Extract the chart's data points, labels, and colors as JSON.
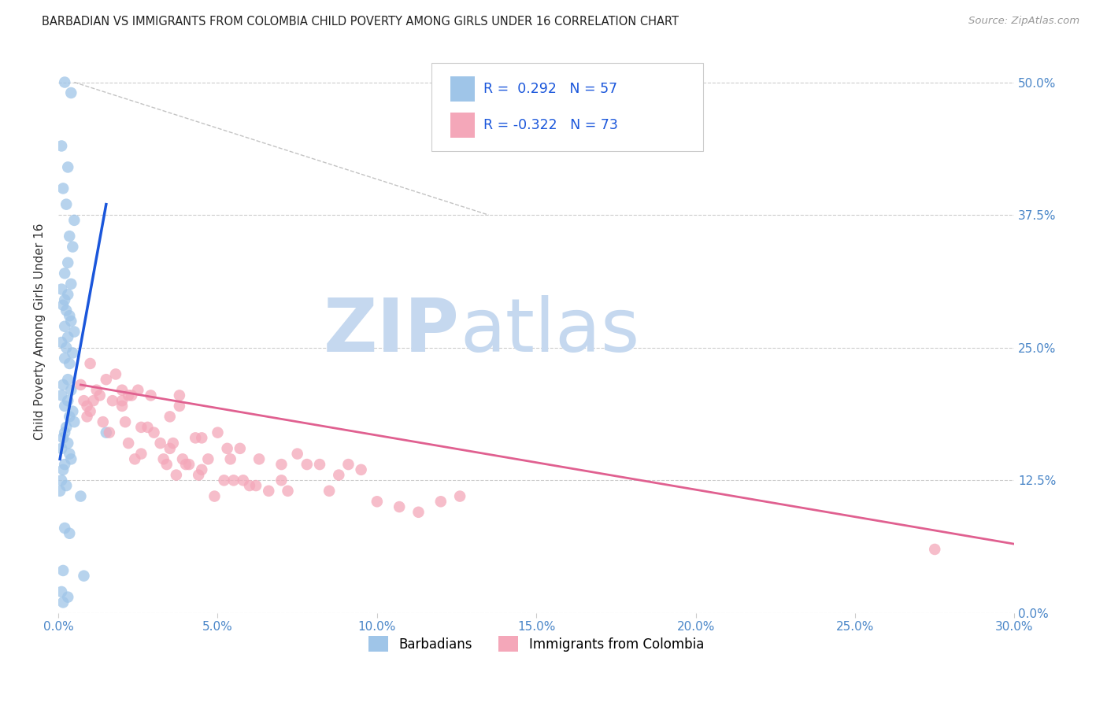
{
  "title": "BARBADIAN VS IMMIGRANTS FROM COLOMBIA CHILD POVERTY AMONG GIRLS UNDER 16 CORRELATION CHART",
  "source": "Source: ZipAtlas.com",
  "xlabel_ticks": [
    "0.0%",
    "5.0%",
    "10.0%",
    "15.0%",
    "20.0%",
    "25.0%",
    "30.0%"
  ],
  "xlabel_vals": [
    0.0,
    5.0,
    10.0,
    15.0,
    20.0,
    25.0,
    30.0
  ],
  "ylabel_ticks": [
    "0.0%",
    "12.5%",
    "25.0%",
    "37.5%",
    "50.0%"
  ],
  "ylabel_vals": [
    0.0,
    12.5,
    25.0,
    37.5,
    50.0
  ],
  "xlim": [
    0,
    30
  ],
  "ylim": [
    0,
    53
  ],
  "ylabel": "Child Poverty Among Girls Under 16",
  "legend_blue_label": "Barbadians",
  "legend_pink_label": "Immigrants from Colombia",
  "R_blue": 0.292,
  "N_blue": 57,
  "R_pink": -0.322,
  "N_pink": 73,
  "blue_color": "#9fc5e8",
  "pink_color": "#f4a7b9",
  "blue_line_color": "#1a56db",
  "pink_line_color": "#e06090",
  "background_color": "#ffffff",
  "blue_scatter_x": [
    0.2,
    0.4,
    0.1,
    0.3,
    0.15,
    0.25,
    0.5,
    0.35,
    0.45,
    0.3,
    0.2,
    0.4,
    0.1,
    0.3,
    0.2,
    0.15,
    0.25,
    0.35,
    0.4,
    0.2,
    0.5,
    0.3,
    0.1,
    0.25,
    0.45,
    0.2,
    0.35,
    0.3,
    0.15,
    0.4,
    0.1,
    0.3,
    0.2,
    0.45,
    0.35,
    0.5,
    0.25,
    0.2,
    1.5,
    0.15,
    0.3,
    0.1,
    0.35,
    0.4,
    0.2,
    0.15,
    0.1,
    0.25,
    0.7,
    0.05,
    0.2,
    0.35,
    0.15,
    0.8,
    0.1,
    0.3,
    0.15
  ],
  "blue_scatter_y": [
    50.0,
    49.0,
    44.0,
    42.0,
    40.0,
    38.5,
    37.0,
    35.5,
    34.5,
    33.0,
    32.0,
    31.0,
    30.5,
    30.0,
    29.5,
    29.0,
    28.5,
    28.0,
    27.5,
    27.0,
    26.5,
    26.0,
    25.5,
    25.0,
    24.5,
    24.0,
    23.5,
    22.0,
    21.5,
    21.0,
    20.5,
    20.0,
    19.5,
    19.0,
    18.5,
    18.0,
    17.5,
    17.0,
    17.0,
    16.5,
    16.0,
    15.5,
    15.0,
    14.5,
    14.0,
    13.5,
    12.5,
    12.0,
    11.0,
    11.5,
    8.0,
    7.5,
    4.0,
    3.5,
    2.0,
    1.5,
    1.0
  ],
  "pink_scatter_x": [
    0.8,
    1.2,
    1.5,
    1.0,
    2.0,
    1.3,
    0.9,
    1.8,
    2.2,
    0.7,
    1.1,
    1.0,
    2.0,
    1.7,
    0.9,
    1.4,
    2.3,
    2.5,
    3.5,
    3.8,
    2.8,
    4.5,
    5.0,
    3.2,
    5.7,
    4.7,
    4.1,
    6.3,
    5.3,
    7.0,
    2.6,
    2.2,
    7.5,
    8.2,
    6.0,
    8.8,
    4.3,
    3.5,
    9.5,
    3.0,
    2.1,
    4.5,
    5.5,
    3.9,
    6.2,
    7.2,
    3.6,
    2.6,
    4.9,
    6.6,
    2.0,
    10.0,
    10.7,
    7.8,
    11.3,
    4.0,
    3.3,
    5.2,
    8.5,
    4.4,
    12.0,
    3.7,
    2.9,
    12.6,
    5.8,
    3.8,
    9.1,
    7.0,
    5.4,
    3.4,
    2.4,
    27.5,
    1.6
  ],
  "pink_scatter_y": [
    20.0,
    21.0,
    22.0,
    23.5,
    21.0,
    20.5,
    19.5,
    22.5,
    20.5,
    21.5,
    20.0,
    19.0,
    19.5,
    20.0,
    18.5,
    18.0,
    20.5,
    21.0,
    18.5,
    20.5,
    17.5,
    16.5,
    17.0,
    16.0,
    15.5,
    14.5,
    14.0,
    14.5,
    15.5,
    14.0,
    17.5,
    16.0,
    15.0,
    14.0,
    12.0,
    13.0,
    16.5,
    15.5,
    13.5,
    17.0,
    18.0,
    13.5,
    12.5,
    14.5,
    12.0,
    11.5,
    16.0,
    15.0,
    11.0,
    11.5,
    20.0,
    10.5,
    10.0,
    14.0,
    9.5,
    14.0,
    14.5,
    12.5,
    11.5,
    13.0,
    10.5,
    13.0,
    20.5,
    11.0,
    12.5,
    19.5,
    14.0,
    12.5,
    14.5,
    14.0,
    14.5,
    6.0,
    17.0
  ],
  "ref_line_x": [
    0.5,
    13.5
  ],
  "ref_line_y": [
    50.0,
    37.5
  ],
  "blue_trend_x": [
    0.05,
    1.5
  ],
  "blue_trend_y": [
    14.5,
    38.5
  ],
  "pink_trend_x": [
    0.7,
    30.0
  ],
  "pink_trend_y": [
    21.5,
    6.5
  ]
}
